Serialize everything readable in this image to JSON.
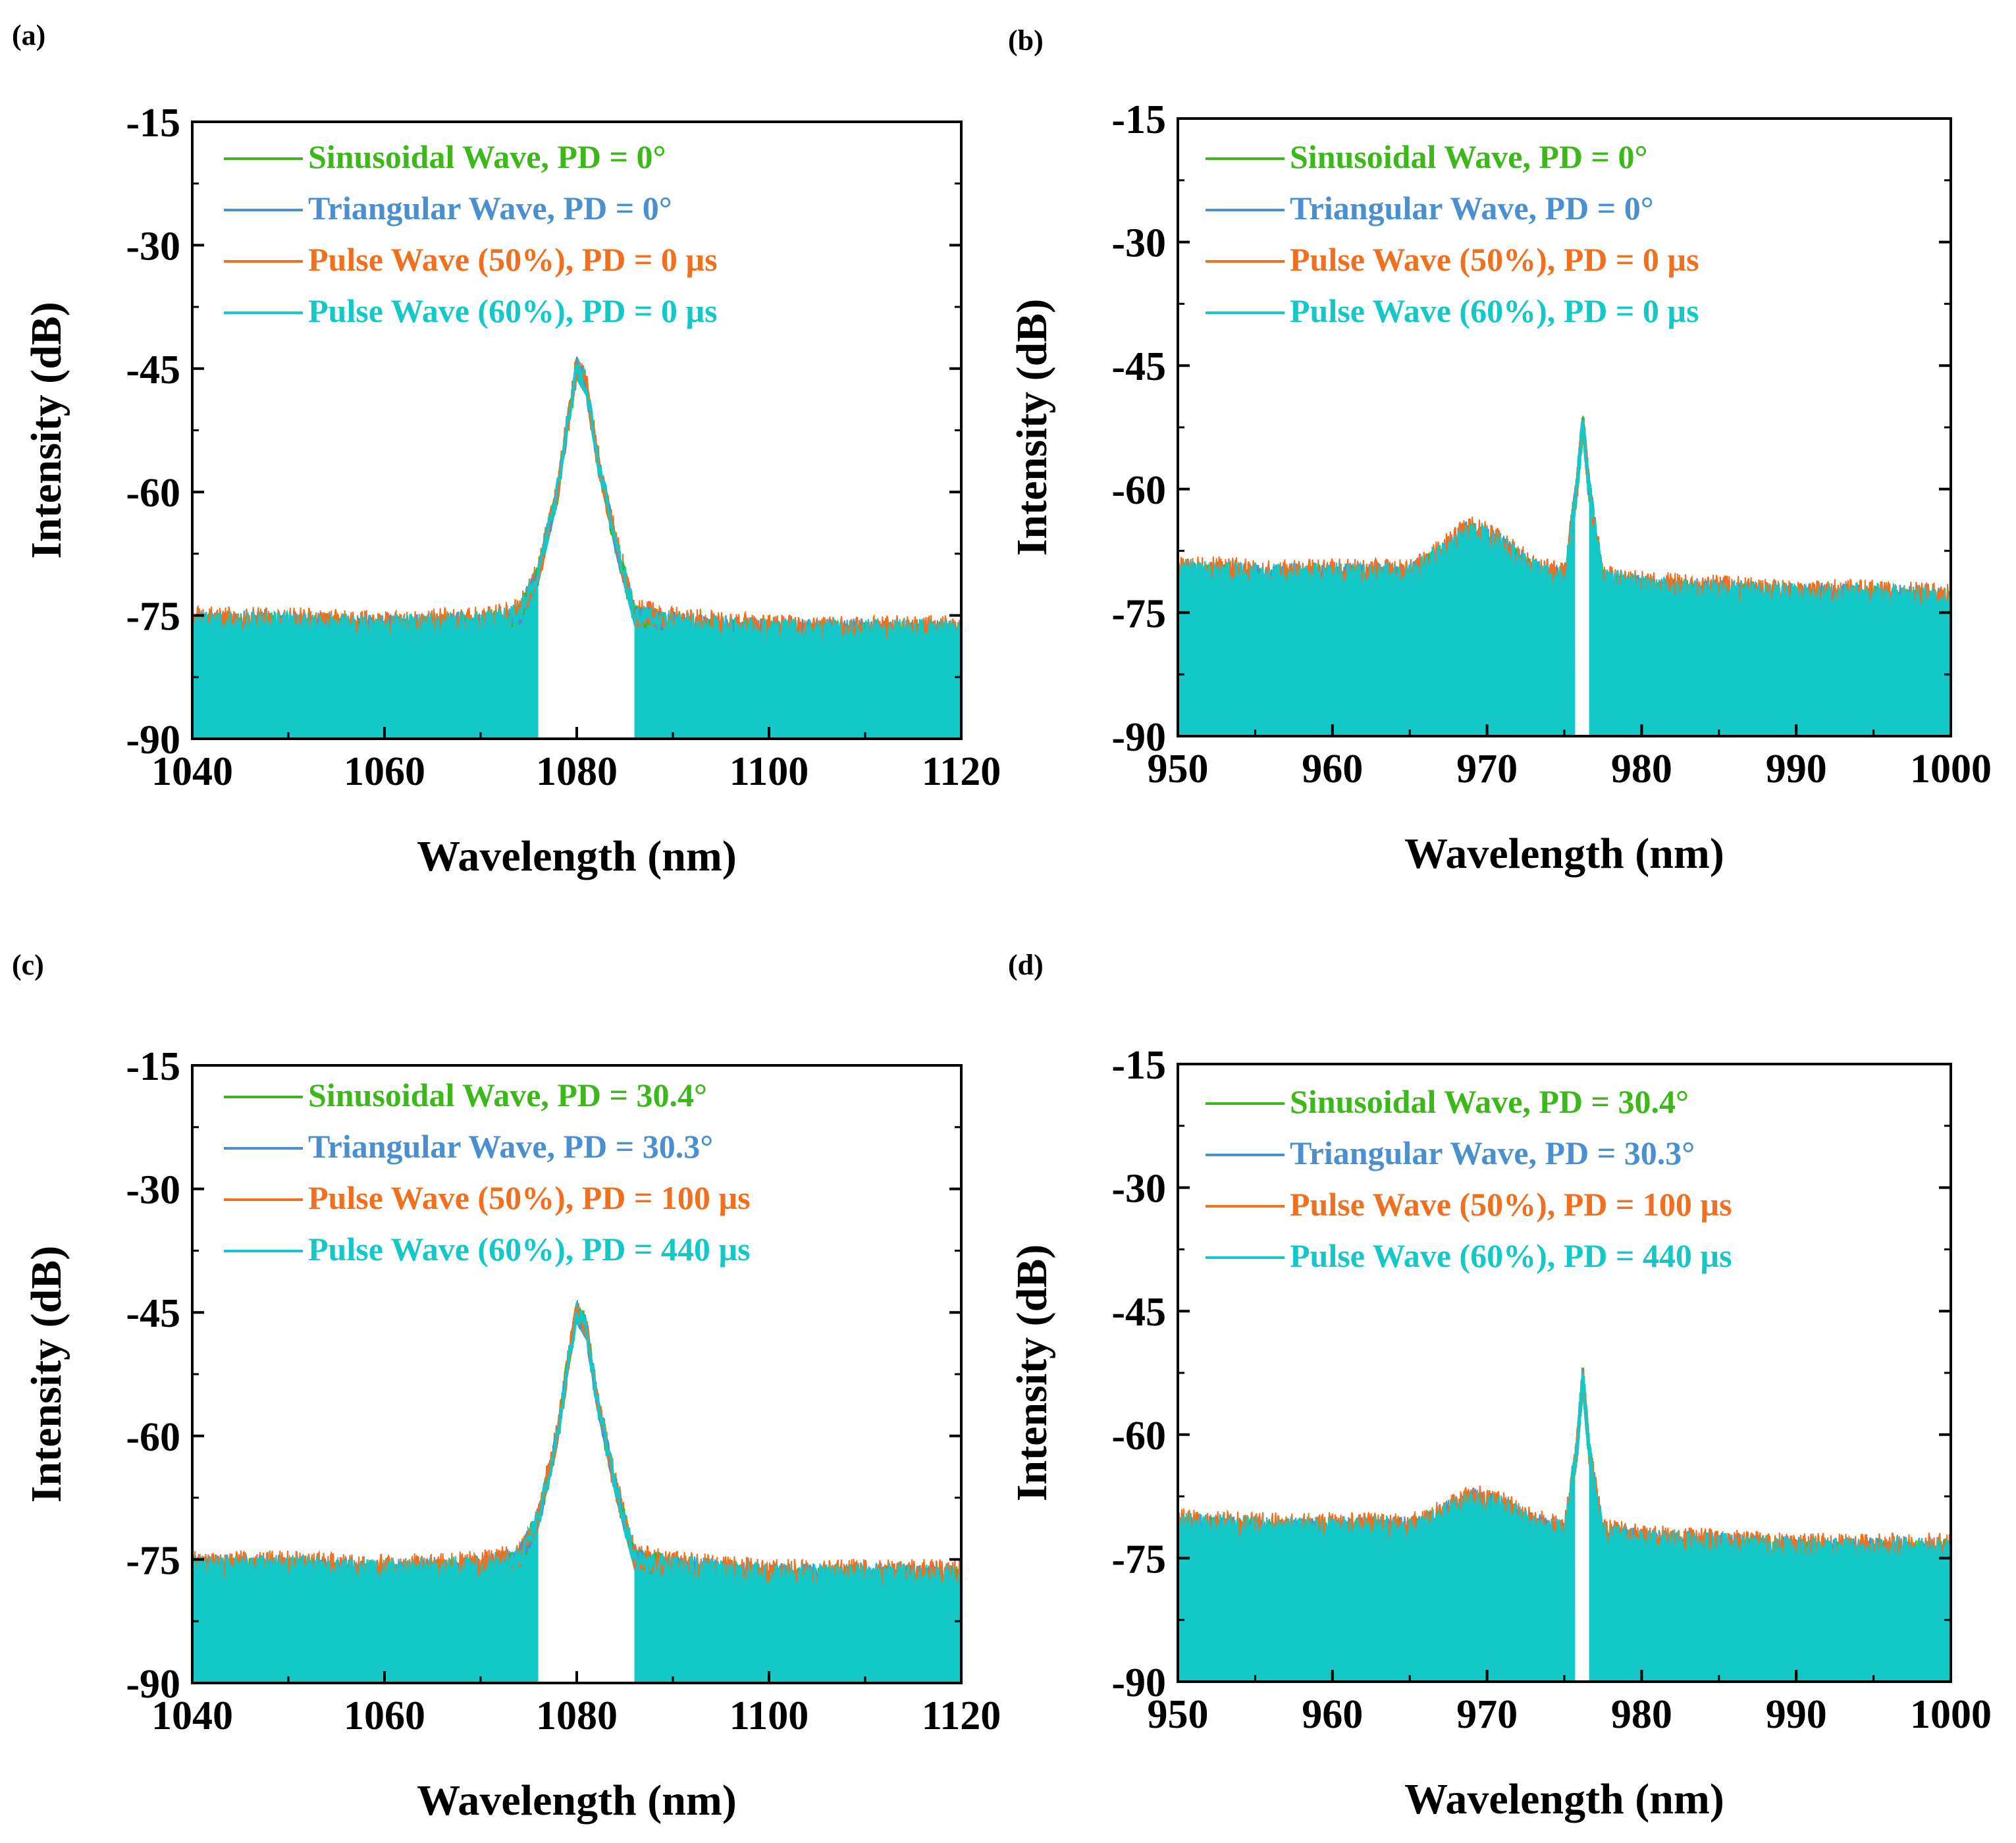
{
  "chart_data": [
    {
      "panel_label": "(a)",
      "type": "line",
      "xlabel": "Wavelength (nm)",
      "ylabel": "Intensity (dB)",
      "xlim": [
        1040,
        1120
      ],
      "ylim": [
        -90,
        -15
      ],
      "xticks": [
        "1040",
        "1060",
        "1080",
        "1100",
        "1120"
      ],
      "xtick_values": [
        1040,
        1060,
        1080,
        1100,
        1120
      ],
      "yticks": [
        "-15",
        "-30",
        "-45",
        "-60",
        "-75",
        "-90"
      ],
      "ytick_values": [
        -15,
        -30,
        -45,
        -60,
        -75,
        -90
      ],
      "legend_position": "top-left",
      "series": [
        {
          "name": "Sinusoidal Wave, PD = 0°",
          "color": "#3cb81a"
        },
        {
          "name": "Triangular Wave, PD = 0°",
          "color": "#4a90d0"
        },
        {
          "name": "Pulse Wave (50%), PD = 0 µs",
          "color": "#f07020"
        },
        {
          "name": "Pulse Wave (60%), PD = 0 µs",
          "color": "#14c8c8"
        }
      ],
      "x": [
        1040,
        1050,
        1060,
        1070,
        1074,
        1076,
        1078,
        1079,
        1080,
        1081,
        1082,
        1084,
        1086,
        1090,
        1100,
        1110,
        1120
      ],
      "y": [
        -76,
        -76,
        -76.5,
        -76,
        -75,
        -70,
        -60,
        -52,
        -45,
        -47,
        -55,
        -66,
        -75,
        -76,
        -77,
        -77,
        -77
      ]
    },
    {
      "panel_label": "(b)",
      "type": "line",
      "xlabel": "Wavelength (nm)",
      "ylabel": "Intensity (dB)",
      "xlim": [
        950,
        1000
      ],
      "ylim": [
        -90,
        -15
      ],
      "xticks": [
        "950",
        "960",
        "970",
        "980",
        "990",
        "1000"
      ],
      "xtick_values": [
        950,
        960,
        970,
        980,
        990,
        1000
      ],
      "yticks": [
        "-15",
        "-30",
        "-45",
        "-60",
        "-75",
        "-90"
      ],
      "ytick_values": [
        -15,
        -30,
        -45,
        -60,
        -75,
        -90
      ],
      "legend_position": "top-left",
      "series": [
        {
          "name": "Sinusoidal Wave, PD = 0°",
          "color": "#3cb81a"
        },
        {
          "name": "Triangular Wave, PD = 0°",
          "color": "#4a90d0"
        },
        {
          "name": "Pulse Wave (50%), PD = 0 µs",
          "color": "#f07020"
        },
        {
          "name": "Pulse Wave (60%), PD = 0 µs",
          "color": "#14c8c8"
        }
      ],
      "x": [
        950,
        955,
        960,
        965,
        967,
        969,
        971,
        973,
        975,
        975.8,
        976.2,
        976.6,
        977.5,
        980,
        985,
        990,
        995,
        1000
      ],
      "y": [
        -70,
        -70.5,
        -70.5,
        -70.5,
        -68,
        -65,
        -67,
        -70,
        -71,
        -60,
        -52,
        -60,
        -71,
        -72,
        -72.5,
        -73,
        -73,
        -73.5
      ]
    },
    {
      "panel_label": "(c)",
      "type": "line",
      "xlabel": "Wavelength (nm)",
      "ylabel": "Intensity (dB)",
      "xlim": [
        1040,
        1120
      ],
      "ylim": [
        -90,
        -15
      ],
      "xticks": [
        "1040",
        "1060",
        "1080",
        "1100",
        "1120"
      ],
      "xtick_values": [
        1040,
        1060,
        1080,
        1100,
        1120
      ],
      "yticks": [
        "-15",
        "-30",
        "-45",
        "-60",
        "-75",
        "-90"
      ],
      "ytick_values": [
        -15,
        -30,
        -45,
        -60,
        -75,
        -90
      ],
      "legend_position": "top-left",
      "series": [
        {
          "name": "Sinusoidal Wave, PD = 30.4°",
          "color": "#3cb81a"
        },
        {
          "name": "Triangular Wave, PD = 30.3°",
          "color": "#4a90d0"
        },
        {
          "name": "Pulse Wave (50%), PD = 100 µs",
          "color": "#f07020"
        },
        {
          "name": "Pulse Wave (60%), PD = 440 µs",
          "color": "#14c8c8"
        }
      ],
      "x": [
        1040,
        1050,
        1060,
        1070,
        1074,
        1076,
        1078,
        1079,
        1080,
        1081,
        1082,
        1084,
        1086,
        1090,
        1100,
        1110,
        1120
      ],
      "y": [
        -76,
        -76,
        -76.5,
        -76,
        -75,
        -70,
        -60,
        -52,
        -45,
        -47,
        -55,
        -66,
        -75,
        -76,
        -77,
        -77,
        -77
      ]
    },
    {
      "panel_label": "(d)",
      "type": "line",
      "xlabel": "Wavelength (nm)",
      "ylabel": "Intensity (dB)",
      "xlim": [
        950,
        1000
      ],
      "ylim": [
        -90,
        -15
      ],
      "xticks": [
        "950",
        "960",
        "970",
        "980",
        "990",
        "1000"
      ],
      "xtick_values": [
        950,
        960,
        970,
        980,
        990,
        1000
      ],
      "yticks": [
        "-15",
        "-30",
        "-45",
        "-60",
        "-75",
        "-90"
      ],
      "ytick_values": [
        -15,
        -30,
        -45,
        -60,
        -75,
        -90
      ],
      "legend_position": "top-left",
      "series": [
        {
          "name": "Sinusoidal Wave, PD = 30.4°",
          "color": "#3cb81a"
        },
        {
          "name": "Triangular Wave, PD = 30.3°",
          "color": "#4a90d0"
        },
        {
          "name": "Pulse Wave (50%), PD = 100 µs",
          "color": "#f07020"
        },
        {
          "name": "Pulse Wave (60%), PD = 440 µs",
          "color": "#14c8c8"
        }
      ],
      "x": [
        950,
        955,
        960,
        965,
        967,
        969,
        971,
        973,
        975,
        975.8,
        976.2,
        976.6,
        977.5,
        980,
        985,
        990,
        995,
        1000
      ],
      "y": [
        -71,
        -71.5,
        -71.5,
        -71.5,
        -70,
        -68,
        -69,
        -71,
        -72,
        -62,
        -53,
        -62,
        -72,
        -73,
        -73.5,
        -74,
        -74,
        -74
      ]
    }
  ]
}
